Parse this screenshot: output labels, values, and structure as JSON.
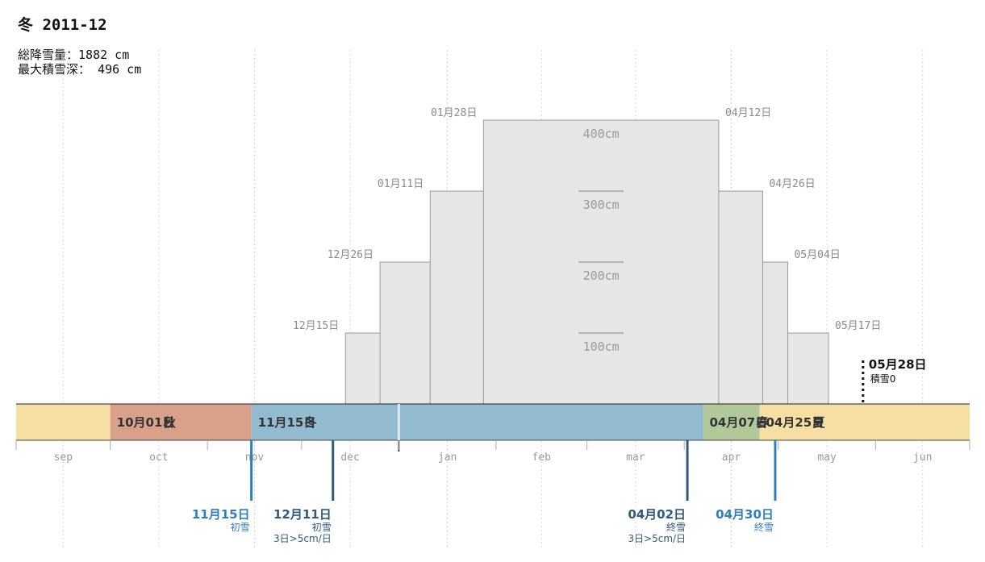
{
  "title": "冬 2011-12",
  "stats": {
    "total_snowfall_label": "総降雪量：",
    "total_snowfall_value": "1882 cm",
    "max_depth_label": "最大積雪深：",
    "max_depth_value": " 496 cm"
  },
  "colors": {
    "autumn": "#d9a08a",
    "winter": "#93bbcf",
    "spring": "#b1c99a",
    "summer": "#f5dfa2",
    "level_fill": "#e6e6e6",
    "level_stroke": "#9a9a9a",
    "first_snow": "#2f7fbf",
    "sustained": "#2f5a7a",
    "grid": "#d8d8d8"
  },
  "chart_data": {
    "type": "area",
    "x_range": [
      "2011-09-01",
      "2012-07-01"
    ],
    "months": [
      "sep",
      "oct",
      "nov",
      "dec",
      "jan",
      "feb",
      "mar",
      "apr",
      "may",
      "jun"
    ],
    "month_starts": [
      "2011-09-01",
      "2011-10-01",
      "2011-11-01",
      "2011-12-01",
      "2012-01-01",
      "2012-02-01",
      "2012-03-01",
      "2012-04-01",
      "2012-05-01",
      "2012-06-01"
    ],
    "seasons": [
      {
        "name": "夏",
        "start": "2011-09-01",
        "end": "2011-10-01",
        "color": "summer",
        "label": ""
      },
      {
        "name": "秋",
        "start": "2011-10-01",
        "end": "2011-11-15",
        "color": "autumn",
        "label": "10月01日"
      },
      {
        "name": "冬",
        "start": "2011-11-15",
        "end": "2012-04-07",
        "color": "winter",
        "label": "11月15日"
      },
      {
        "name": "春",
        "start": "2012-04-07",
        "end": "2012-04-25",
        "color": "spring",
        "label": "04月07日"
      },
      {
        "name": "夏",
        "start": "2012-04-25",
        "end": "2012-07-01",
        "color": "summer",
        "label": "04月25日"
      }
    ],
    "snow_depth_levels": [
      {
        "level": 100,
        "label": "100cm",
        "start": "2011-12-15",
        "end": "2012-05-17",
        "start_label": "12月15日",
        "end_label": "05月17日"
      },
      {
        "level": 200,
        "label": "200cm",
        "start": "2011-12-26",
        "end": "2012-05-04",
        "start_label": "12月26日",
        "end_label": "05月04日"
      },
      {
        "level": 300,
        "label": "300cm",
        "start": "2012-01-11",
        "end": "2012-04-26",
        "start_label": "01月11日",
        "end_label": "04月26日"
      },
      {
        "level": 400,
        "label": "400cm",
        "start": "2012-01-28",
        "end": "2012-04-12",
        "start_label": "01月28日",
        "end_label": "04月12日"
      }
    ],
    "events": [
      {
        "date": "2011-11-15",
        "label": "11月15日",
        "kind": "初雪",
        "note": "",
        "style": "first_snow"
      },
      {
        "date": "2011-12-11",
        "label": "12月11日",
        "kind": "初雪",
        "note": "3日>5cm/日",
        "style": "sustained"
      },
      {
        "date": "2012-04-02",
        "label": "04月02日",
        "kind": "終雪",
        "note": "3日>5cm/日",
        "style": "sustained"
      },
      {
        "date": "2012-04-30",
        "label": "04月30日",
        "kind": "終雪",
        "note": "",
        "style": "first_snow"
      }
    ],
    "today_marker": "2012-01-01",
    "snow_end": {
      "date": "2012-05-28",
      "label": "05月28日",
      "sub": "積雪0"
    }
  }
}
